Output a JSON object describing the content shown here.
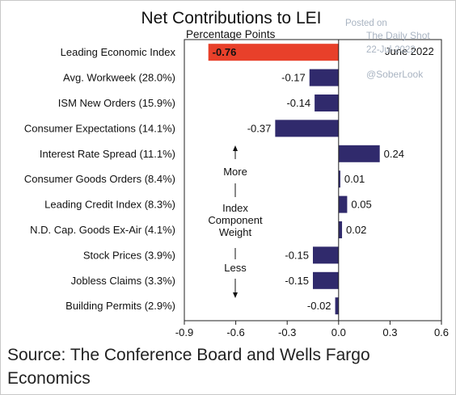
{
  "chart_data": {
    "type": "bar",
    "orientation": "horizontal",
    "title": "Net Contributions to LEI",
    "subtitle": "Percentage Points",
    "legend": "June 2022",
    "categories": [
      "Leading Economic Index",
      "Avg. Workweek (28.0%)",
      "ISM New Orders (15.9%)",
      "Consumer Expectations (14.1%)",
      "Interest Rate Spread (11.1%)",
      "Consumer Goods Orders (8.4%)",
      "Leading Credit Index (8.3%)",
      "N.D. Cap. Goods Ex-Air (4.1%)",
      "Stock Prices (3.9%)",
      "Jobless Claims (3.3%)",
      "Building Permits (2.9%)"
    ],
    "values": [
      -0.76,
      -0.17,
      -0.14,
      -0.37,
      0.24,
      0.01,
      0.05,
      0.02,
      -0.15,
      -0.15,
      -0.02
    ],
    "value_labels": [
      "-0.76",
      "-0.17",
      "-0.14",
      "-0.37",
      "0.24",
      "0.01",
      "0.05",
      "0.02",
      "-0.15",
      "-0.15",
      "-0.02"
    ],
    "highlight_index": 0,
    "xlim": [
      -0.9,
      0.6
    ],
    "xticks": [
      -0.9,
      -0.6,
      -0.3,
      0.0,
      0.3,
      0.6
    ],
    "xtick_labels": [
      "-0.9",
      "-0.6",
      "-0.3",
      "0.0",
      "0.3",
      "0.6"
    ],
    "grid": false,
    "colors": {
      "highlight": "#e8402a",
      "bar": "#302a6c",
      "axis": "#222222"
    },
    "annotation": {
      "top": "More",
      "middle_lines": [
        "Index",
        "Component",
        "Weight"
      ],
      "bottom": "Less"
    }
  },
  "watermark": {
    "posted_on": "Posted on",
    "site": "The Daily Shot",
    "date": "22-Jul-2022",
    "handle": "@SoberLook"
  },
  "source": "Source: The Conference Board and Wells Fargo Economics"
}
